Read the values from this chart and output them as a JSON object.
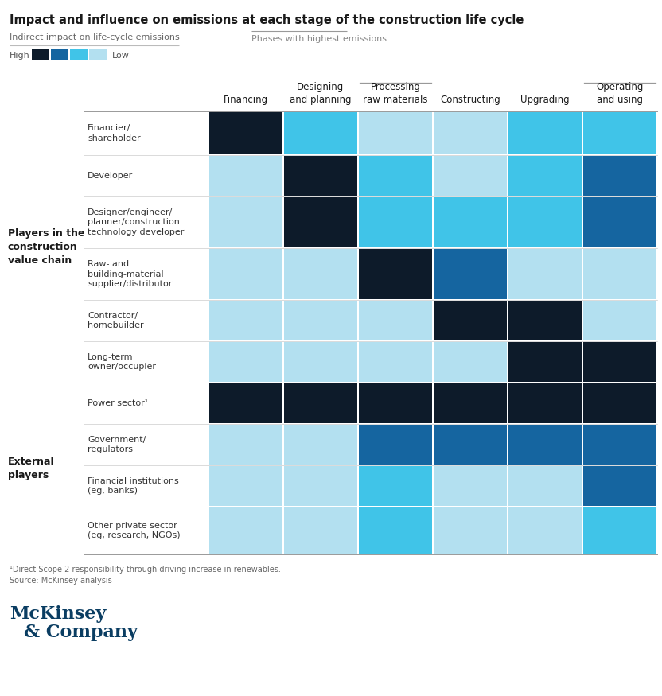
{
  "title": "Impact and influence on emissions at each stage of the construction life cycle",
  "legend_left_label": "Indirect impact on life-cycle emissions",
  "legend_right_label": "Phases with highest emissions",
  "high_label": "High",
  "low_label": "Low",
  "columns": [
    "Financing",
    "Designing\nand planning",
    "Processing\nraw materials",
    "Constructing",
    "Upgrading",
    "Operating\nand using"
  ],
  "col_header_lines": [
    2,
    5
  ],
  "row_groups": [
    {
      "group_label": "Players in the\nconstruction\nvalue chain",
      "rows": [
        {
          "label": "Financier/\nshareholder",
          "colors": [
            "#0d1b2a",
            "#40c4e8",
            "#b3e0f0",
            "#b3e0f0",
            "#40c4e8",
            "#40c4e8"
          ]
        },
        {
          "label": "Developer",
          "colors": [
            "#b3e0f0",
            "#0d1b2a",
            "#40c4e8",
            "#b3e0f0",
            "#40c4e8",
            "#1565a0"
          ]
        },
        {
          "label": "Designer/engineer/\nplanner/construction\ntechnology developer",
          "colors": [
            "#b3e0f0",
            "#0d1b2a",
            "#40c4e8",
            "#40c4e8",
            "#40c4e8",
            "#1565a0"
          ]
        },
        {
          "label": "Raw- and\nbuilding-material\nsupplier/distributor",
          "colors": [
            "#b3e0f0",
            "#b3e0f0",
            "#0d1b2a",
            "#1565a0",
            "#b3e0f0",
            "#b3e0f0"
          ]
        },
        {
          "label": "Contractor/\nhomebuilder",
          "colors": [
            "#b3e0f0",
            "#b3e0f0",
            "#b3e0f0",
            "#0d1b2a",
            "#0d1b2a",
            "#b3e0f0"
          ]
        },
        {
          "label": "Long-term\nowner/occupier",
          "colors": [
            "#b3e0f0",
            "#b3e0f0",
            "#b3e0f0",
            "#b3e0f0",
            "#0d1b2a",
            "#0d1b2a"
          ]
        }
      ]
    },
    {
      "group_label": "External\nplayers",
      "rows": [
        {
          "label": "Power sector¹",
          "colors": [
            "#0d1b2a",
            "#0d1b2a",
            "#0d1b2a",
            "#0d1b2a",
            "#0d1b2a",
            "#0d1b2a"
          ]
        },
        {
          "label": "Government/\nregulators",
          "colors": [
            "#b3e0f0",
            "#b3e0f0",
            "#1565a0",
            "#1565a0",
            "#1565a0",
            "#1565a0"
          ]
        },
        {
          "label": "Financial institutions\n(eg, banks)",
          "colors": [
            "#b3e0f0",
            "#b3e0f0",
            "#40c4e8",
            "#b3e0f0",
            "#b3e0f0",
            "#1565a0"
          ]
        },
        {
          "label": "Other private sector\n(eg, research, NGOs)",
          "colors": [
            "#b3e0f0",
            "#b3e0f0",
            "#40c4e8",
            "#b3e0f0",
            "#b3e0f0",
            "#40c4e8"
          ]
        }
      ]
    }
  ],
  "footnote1": "¹Direct Scope 2 responsibility through driving increase in renewables.",
  "footnote2": "Source: McKinsey analysis",
  "legend_colors": [
    "#0d1b2a",
    "#1565a0",
    "#40c4e8",
    "#b3e0f0"
  ],
  "bg_color": "#ffffff",
  "separator_color": "#cccccc",
  "group_separator_color": "#999999"
}
